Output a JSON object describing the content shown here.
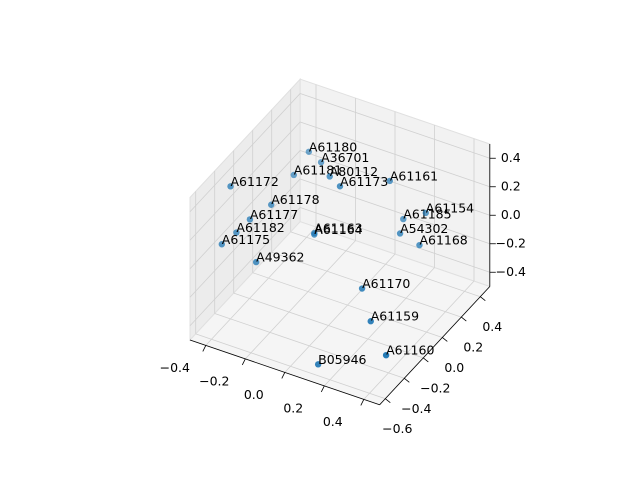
{
  "chart_data": {
    "type": "scatter3d",
    "xlim": [
      -0.48,
      0.48
    ],
    "ylim": [
      -0.66,
      0.5
    ],
    "zlim": [
      -0.5,
      0.5
    ],
    "xticks": [
      {
        "value": -0.4,
        "label": "−0.4"
      },
      {
        "value": -0.2,
        "label": "−0.2"
      },
      {
        "value": 0,
        "label": "0.0"
      },
      0.2,
      0.4
    ],
    "yticks": [
      {
        "value": -0.6,
        "label": "−0.6"
      },
      {
        "value": -0.4,
        "label": "−0.4"
      },
      {
        "value": -0.2,
        "label": "−0.2"
      },
      {
        "value": 0,
        "label": "0.0"
      },
      0.2,
      0.4
    ],
    "zticks": [
      {
        "value": -0.4,
        "label": "−0.4"
      },
      {
        "value": -0.2,
        "label": "−0.2"
      },
      {
        "value": 0,
        "label": "0.0"
      },
      0.2,
      0.4
    ],
    "grid": true,
    "series": [
      {
        "color": "#1f77b4",
        "labels": [
          "A61180",
          "A36701",
          "A61181",
          "A80112",
          "A61173",
          "A61161",
          "A61172",
          "A61178",
          "A61177",
          "A61185",
          "A61154",
          "A54302",
          "A61163",
          "A61164",
          "A61182",
          "A61175",
          "A61168",
          "A49362",
          "A61170",
          "A61159",
          "A61160",
          "B05946"
        ],
        "x": [
          -0.34,
          -0.23,
          -0.32,
          -0.09,
          0.01,
          0.07,
          -0.4,
          -0.29,
          -0.35,
          0.09,
          0.18,
          0.17,
          -0.12,
          -0.12,
          -0.37,
          -0.42,
          0.22,
          -0.27,
          0.17,
          0.31,
          0.46,
          0.14
        ],
        "y": [
          0.3,
          0.2,
          0.1,
          0.0,
          -0.1,
          0.3,
          -0.4,
          -0.2,
          -0.3,
          0.4,
          0.45,
          0.2,
          -0.1,
          -0.1,
          -0.4,
          -0.45,
          0.3,
          -0.4,
          -0.2,
          -0.4,
          -0.55,
          -0.6
        ],
        "z": [
          0.2,
          0.25,
          0.19,
          0.36,
          0.41,
          0.19,
          0.43,
          0.21,
          0.15,
          -0.14,
          -0.09,
          -0.06,
          0.02,
          0.01,
          0.12,
          0.05,
          -0.19,
          -0.04,
          -0.16,
          -0.18,
          -0.24,
          -0.42
        ]
      }
    ]
  }
}
